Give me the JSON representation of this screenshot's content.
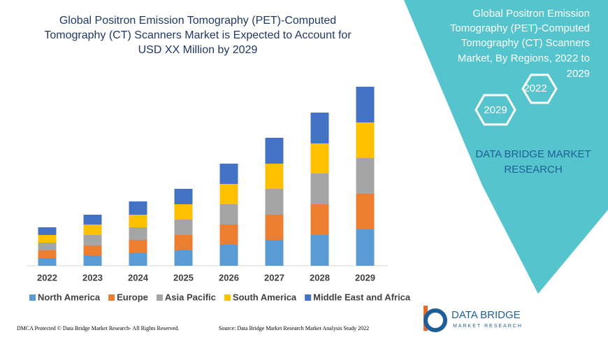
{
  "chart_data": {
    "type": "stacked-bar",
    "title": [
      "Global Positron Emission Tomography (PET)-Computed",
      "Tomography (CT) Scanners Market is Expected to Account for",
      "USD XX Million by 2029"
    ],
    "categories": [
      "2022",
      "2023",
      "2024",
      "2025",
      "2026",
      "2027",
      "2028",
      "2029"
    ],
    "series": [
      {
        "name": "North America",
        "color": "#5b9bd5",
        "values": [
          11,
          15,
          18,
          22,
          30,
          37,
          44,
          52
        ]
      },
      {
        "name": "Europe",
        "color": "#ed7d31",
        "values": [
          11,
          14,
          19,
          22,
          29,
          36,
          44,
          51
        ]
      },
      {
        "name": "Asia Pacific",
        "color": "#a5a5a5",
        "values": [
          11,
          15,
          18,
          22,
          29,
          37,
          44,
          51
        ]
      },
      {
        "name": "South America",
        "color": "#ffc000",
        "values": [
          11,
          15,
          18,
          22,
          29,
          36,
          43,
          51
        ]
      },
      {
        "name": "Middle East and Africa",
        "color": "#4472c4",
        "values": [
          11,
          14,
          19,
          22,
          29,
          37,
          44,
          51
        ]
      }
    ]
  },
  "side_panel": {
    "title": [
      "Global Positron Emission",
      "Tomography (PET)-Computed",
      "Tomography (CT) Scanners",
      "Market, By Regions, 2022 to",
      "2029"
    ],
    "hex_labels": [
      "2022",
      "2029"
    ],
    "brand": [
      "DATA BRIDGE MARKET",
      "RESEARCH"
    ]
  },
  "logo": {
    "name": "DATA BRIDGE",
    "tagline": "MARKET RESEARCH"
  },
  "footer": {
    "left": "DMCA Protected © Data Bridge Market Research- All Rights Reserved.",
    "right": "Source: Data Bridge Market Research Market Analysis Study 2022"
  }
}
